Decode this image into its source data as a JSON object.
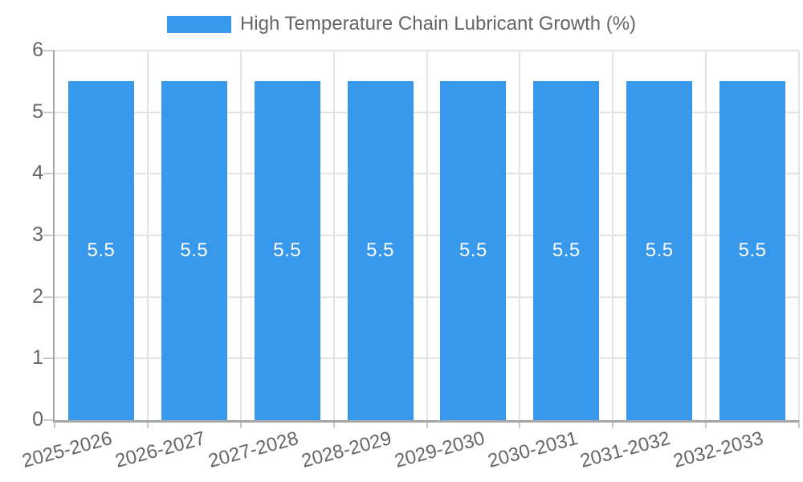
{
  "chart_data": {
    "type": "bar",
    "title": "",
    "xlabel": "",
    "ylabel": "",
    "legend": {
      "position": "top",
      "label": "High Temperature Chain Lubricant Growth (%)"
    },
    "categories": [
      "2025-2026",
      "2026-2027",
      "2027-2028",
      "2028-2029",
      "2029-2030",
      "2030-2031",
      "2031-2032",
      "2032-2033"
    ],
    "series": [
      {
        "name": "High Temperature Chain Lubricant Growth (%)",
        "values": [
          5.5,
          5.5,
          5.5,
          5.5,
          5.5,
          5.5,
          5.5,
          5.5
        ]
      }
    ],
    "bar_value_labels": [
      "5.5",
      "5.5",
      "5.5",
      "5.5",
      "5.5",
      "5.5",
      "5.5",
      "5.5"
    ],
    "ylim": [
      0,
      6
    ],
    "yticks": [
      0,
      1,
      2,
      3,
      4,
      5,
      6
    ],
    "grid": true,
    "colors": {
      "bar": "#3898EC",
      "axis_text": "#666666",
      "bar_label": "#FFFFFF",
      "gridline": "#E3E3E3",
      "axis_line": "#A6A6A6",
      "tick": "#C9C9C9",
      "background": "#FFFFFF"
    }
  }
}
